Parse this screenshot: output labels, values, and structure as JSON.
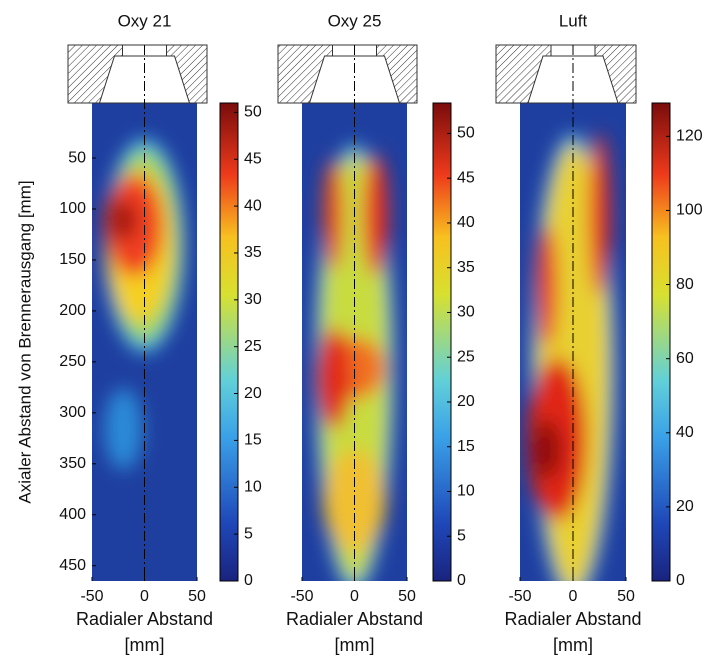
{
  "chart_data": [
    {
      "type": "heatmap",
      "title": "Oxy 21",
      "xlabel": [
        "Radialer Abstand",
        "[mm]"
      ],
      "ylabel": "Axialer Abstand von Brennerausgang [mm]",
      "xlim": [
        -50,
        50
      ],
      "xticks": [
        -50,
        0,
        50
      ],
      "ylim": [
        -4,
        465
      ],
      "yticks": [
        50,
        100,
        150,
        200,
        250,
        300,
        350,
        400,
        450
      ],
      "y_reversed": true,
      "colormap": "jet",
      "clim": [
        0,
        51
      ],
      "cticks": [
        0,
        5,
        10,
        15,
        20,
        25,
        30,
        35,
        40,
        45,
        50
      ]
    },
    {
      "type": "heatmap",
      "title": "Oxy 25",
      "xlabel": [
        "Radialer Abstand",
        "[mm]"
      ],
      "xlim": [
        -50,
        50
      ],
      "xticks": [
        -50,
        0,
        50
      ],
      "ylim": [
        -4,
        465
      ],
      "y_reversed": true,
      "colormap": "jet",
      "clim": [
        0,
        53.4
      ],
      "cticks": [
        0,
        5,
        10,
        15,
        20,
        25,
        30,
        35,
        40,
        45,
        50
      ]
    },
    {
      "type": "heatmap",
      "title": "Luft",
      "xlabel": [
        "Radialer Abstand",
        "[mm]"
      ],
      "xlim": [
        -50,
        50
      ],
      "xticks": [
        -50,
        0,
        50
      ],
      "ylim": [
        -4,
        465
      ],
      "y_reversed": true,
      "colormap": "jet",
      "clim": [
        0,
        129
      ],
      "cticks": [
        0,
        20,
        40,
        60,
        80,
        100,
        120
      ]
    }
  ]
}
